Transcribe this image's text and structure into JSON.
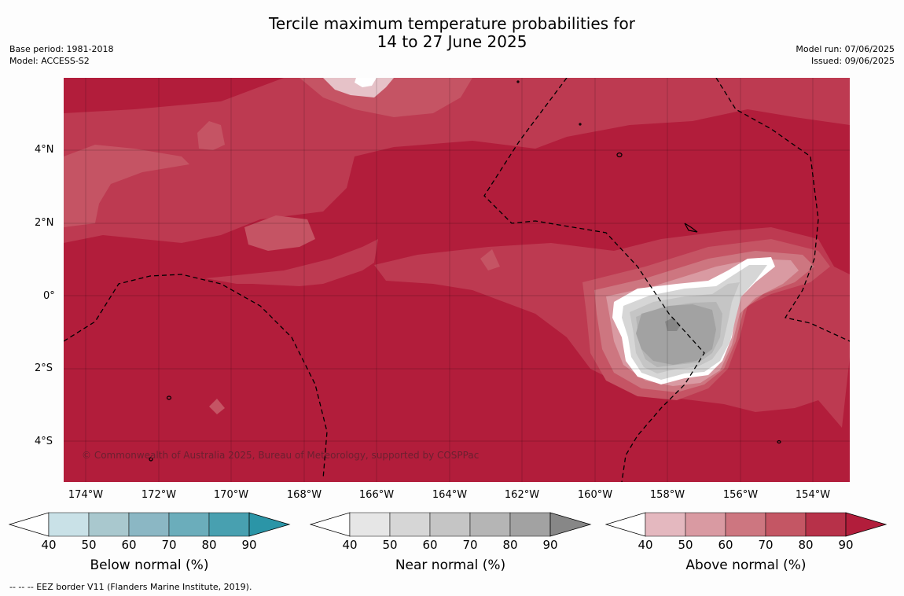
{
  "title": {
    "line1": "Tercile maximum temperature probabilities for",
    "line2": "14 to 27 June 2025"
  },
  "meta_left": [
    "Base period: 1981-2018",
    "Model: ACCESS-S2"
  ],
  "meta_right": [
    "Model run: 07/06/2025",
    "Issued: 09/06/2025"
  ],
  "map": {
    "lat_labels": [
      "4°N",
      "2°N",
      "0°",
      "2°S",
      "4°S"
    ],
    "lon_labels": [
      "174°W",
      "172°W",
      "170°W",
      "168°W",
      "166°W",
      "164°W",
      "162°W",
      "160°W",
      "158°W",
      "156°W",
      "154°W"
    ],
    "copyright": "© Commonwealth of Australia 2025, Bureau of Meteorology, supported by COSPPac",
    "base_color": "#b21d3b",
    "eez_border_style": "dashed"
  },
  "colorbars": [
    {
      "name": "Below normal (%)",
      "ticks": [
        "40",
        "50",
        "60",
        "70",
        "80",
        "90"
      ],
      "colors": [
        "#ffffff",
        "#c9e1e7",
        "#a9c8ce",
        "#8bb7c4",
        "#6badbb",
        "#48a0b0",
        "#2b95a7"
      ]
    },
    {
      "name": "Near normal (%)",
      "ticks": [
        "40",
        "50",
        "60",
        "70",
        "80",
        "90"
      ],
      "colors": [
        "#ffffff",
        "#e6e6e6",
        "#d6d6d6",
        "#c5c5c5",
        "#b5b5b5",
        "#a2a2a2",
        "#878787"
      ]
    },
    {
      "name": "Above normal (%)",
      "ticks": [
        "40",
        "50",
        "60",
        "70",
        "80",
        "90"
      ],
      "colors": [
        "#ffffff",
        "#e4b8bf",
        "#d99aa2",
        "#cd7680",
        "#c45664",
        "#b73149",
        "#b21d3b"
      ]
    }
  ],
  "footnote": "--  --  -- EEZ border V11 (Flanders Marine Institute, 2019)."
}
